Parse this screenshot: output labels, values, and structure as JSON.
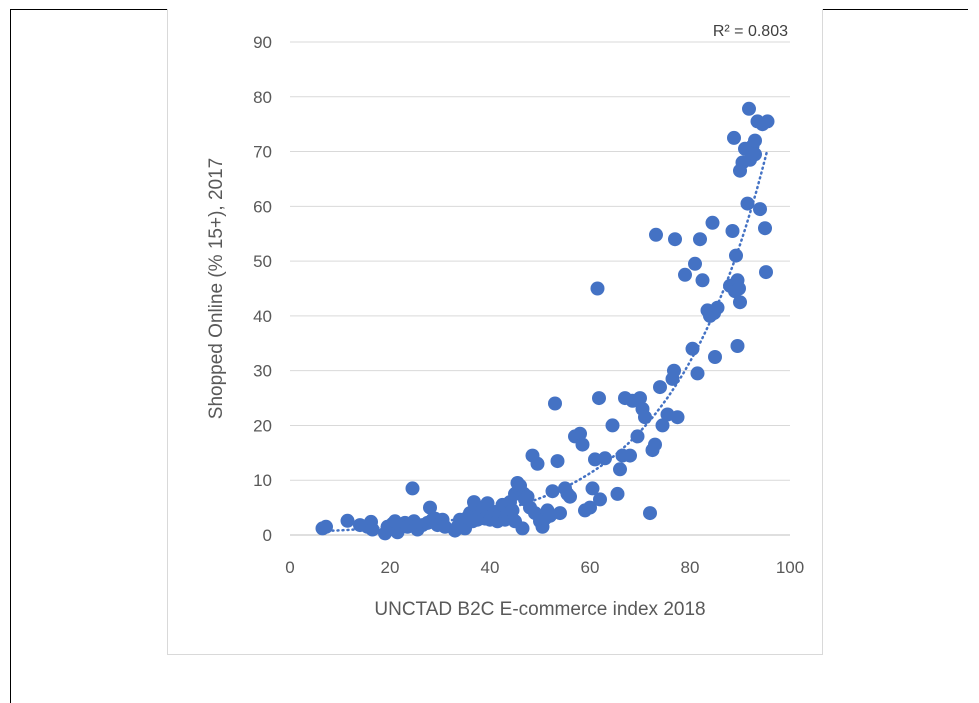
{
  "chart_data": {
    "type": "scatter",
    "title": "",
    "xlabel": "UNCTAD B2C E-commerce index 2018",
    "ylabel": "Shopped Online (% 15+), 2017",
    "xlim": [
      0,
      100
    ],
    "ylim": [
      0,
      90
    ],
    "xticks": [
      "0",
      "20",
      "40",
      "60",
      "80",
      "100"
    ],
    "yticks": [
      "0",
      "10",
      "20",
      "30",
      "40",
      "50",
      "60",
      "70",
      "80",
      "90"
    ],
    "grid": "horizontal",
    "legend": "none",
    "annotation": "R² = 0.803",
    "trendline": "dotted",
    "marker_color": "#4472c4",
    "points": [
      [
        6.5,
        1.2
      ],
      [
        7.2,
        1.5
      ],
      [
        11.5,
        2.6
      ],
      [
        14,
        1.8
      ],
      [
        15.5,
        1.5
      ],
      [
        16.2,
        2.4
      ],
      [
        16.5,
        1.0
      ],
      [
        19,
        0.3
      ],
      [
        19.5,
        1.5
      ],
      [
        20.5,
        2.0
      ],
      [
        21,
        2.5
      ],
      [
        21.5,
        0.5
      ],
      [
        22,
        1.8
      ],
      [
        23,
        2.2
      ],
      [
        23.5,
        1.5
      ],
      [
        24.5,
        8.5
      ],
      [
        24.8,
        2.5
      ],
      [
        25.2,
        1.5
      ],
      [
        25.5,
        1.0
      ],
      [
        26.5,
        1.8
      ],
      [
        27.5,
        2.2
      ],
      [
        28,
        5.0
      ],
      [
        28.5,
        2.8
      ],
      [
        29,
        3.0
      ],
      [
        29.5,
        1.8
      ],
      [
        30.5,
        2.8
      ],
      [
        31,
        1.5
      ],
      [
        33,
        0.8
      ],
      [
        33.5,
        1.5
      ],
      [
        34,
        2.8
      ],
      [
        34.5,
        2.0
      ],
      [
        35,
        1.2
      ],
      [
        35.5,
        3.2
      ],
      [
        36,
        4.0
      ],
      [
        36.5,
        2.5
      ],
      [
        36.8,
        6.0
      ],
      [
        37,
        5.5
      ],
      [
        37.5,
        2.8
      ],
      [
        38,
        3.5
      ],
      [
        38.5,
        4.5
      ],
      [
        39,
        3.0
      ],
      [
        39.5,
        5.8
      ],
      [
        40,
        2.8
      ],
      [
        40.5,
        3.5
      ],
      [
        41,
        4.2
      ],
      [
        41.5,
        2.5
      ],
      [
        42,
        3.8
      ],
      [
        42.5,
        5.5
      ],
      [
        43,
        2.8
      ],
      [
        43.5,
        3.8
      ],
      [
        44,
        6.0
      ],
      [
        44.5,
        4.5
      ],
      [
        45,
        7.5
      ],
      [
        45,
        2.5
      ],
      [
        45.5,
        9.5
      ],
      [
        45.8,
        8.5
      ],
      [
        46,
        9.0
      ],
      [
        46.5,
        1.2
      ],
      [
        46.8,
        7.5
      ],
      [
        47,
        6.5
      ],
      [
        47.5,
        7.0
      ],
      [
        48,
        5.0
      ],
      [
        48.5,
        14.5
      ],
      [
        49,
        4.0
      ],
      [
        49.5,
        13.0
      ],
      [
        50,
        2.5
      ],
      [
        50.5,
        1.5
      ],
      [
        51,
        3.0
      ],
      [
        51.5,
        4.5
      ],
      [
        52,
        3.5
      ],
      [
        52.5,
        8.0
      ],
      [
        53,
        24.0
      ],
      [
        53.5,
        13.5
      ],
      [
        54,
        4.0
      ],
      [
        55,
        8.5
      ],
      [
        55.5,
        7.5
      ],
      [
        56,
        7.0
      ],
      [
        57,
        18.0
      ],
      [
        58,
        18.5
      ],
      [
        58.5,
        16.5
      ],
      [
        59,
        4.5
      ],
      [
        60,
        5.0
      ],
      [
        60.5,
        8.5
      ],
      [
        61,
        13.8
      ],
      [
        61.5,
        45.0
      ],
      [
        61.8,
        25.0
      ],
      [
        62,
        6.5
      ],
      [
        63,
        14.0
      ],
      [
        64.5,
        20.0
      ],
      [
        65.5,
        7.5
      ],
      [
        66,
        12.0
      ],
      [
        66.5,
        14.5
      ],
      [
        67,
        25.0
      ],
      [
        68,
        14.5
      ],
      [
        68.5,
        24.5
      ],
      [
        69.5,
        18.0
      ],
      [
        70,
        25.0
      ],
      [
        70.5,
        23.0
      ],
      [
        71,
        21.5
      ],
      [
        72,
        4.0
      ],
      [
        72.5,
        15.5
      ],
      [
        73,
        16.5
      ],
      [
        73.2,
        54.8
      ],
      [
        74,
        27.0
      ],
      [
        74.5,
        20.0
      ],
      [
        75.5,
        22.0
      ],
      [
        76.5,
        28.5
      ],
      [
        76.8,
        30.0
      ],
      [
        77,
        54.0
      ],
      [
        77.5,
        21.5
      ],
      [
        79,
        47.5
      ],
      [
        80.5,
        34.0
      ],
      [
        81,
        49.5
      ],
      [
        81.5,
        29.5
      ],
      [
        82,
        54.0
      ],
      [
        82.5,
        46.5
      ],
      [
        83.5,
        41.0
      ],
      [
        84,
        40.0
      ],
      [
        84.5,
        57.0
      ],
      [
        84.8,
        40.5
      ],
      [
        85,
        32.5
      ],
      [
        85.5,
        41.5
      ],
      [
        88,
        45.5
      ],
      [
        88.5,
        55.5
      ],
      [
        88.8,
        72.5
      ],
      [
        89,
        44.5
      ],
      [
        89.2,
        51.0
      ],
      [
        89.5,
        46.5
      ],
      [
        89.5,
        34.5
      ],
      [
        89.8,
        45.0
      ],
      [
        90,
        66.5
      ],
      [
        90,
        42.5
      ],
      [
        90.5,
        68.0
      ],
      [
        91,
        70.5
      ],
      [
        91.5,
        60.5
      ],
      [
        91.8,
        77.8
      ],
      [
        92,
        68.5
      ],
      [
        92.5,
        71.0
      ],
      [
        93,
        72.0
      ],
      [
        93,
        69.5
      ],
      [
        93.5,
        75.5
      ],
      [
        94,
        59.5
      ],
      [
        94.5,
        75.0
      ],
      [
        95,
        56.0
      ],
      [
        95.2,
        48.0
      ],
      [
        95.5,
        75.5
      ]
    ]
  }
}
